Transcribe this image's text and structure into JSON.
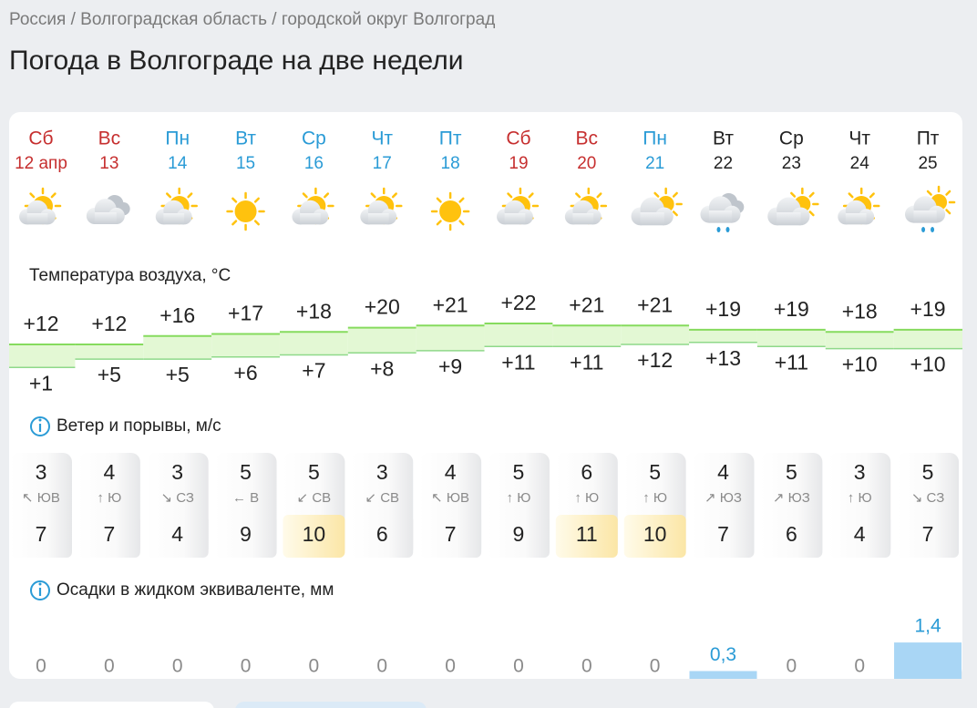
{
  "breadcrumb": "Россия / Волгоградская область / городской округ Волгоград",
  "title": "Погода в Волгограде на две недели",
  "temperature_label": "Температура воздуха, °C",
  "wind_label": "Ветер и порывы, м/с",
  "precip_label": "Осадки в жидком эквиваленте, мм",
  "days": [
    {
      "weekday": "Сб",
      "date": "12 апр",
      "color": "#c62f2f",
      "icon": "partly",
      "max": {
        "value": 12,
        "label": "+12"
      },
      "min": {
        "value": 1,
        "label": "+1"
      },
      "wind": 3,
      "dir": "↖ ЮВ",
      "gust": 7,
      "precip": {
        "value": 0,
        "label": "0"
      }
    },
    {
      "weekday": "Вс",
      "date": "13",
      "color": "#c62f2f",
      "icon": "cloudy",
      "max": {
        "value": 12,
        "label": "+12"
      },
      "min": {
        "value": 5,
        "label": "+5"
      },
      "wind": 4,
      "dir": "↑ Ю",
      "gust": 7,
      "precip": {
        "value": 0,
        "label": "0"
      }
    },
    {
      "weekday": "Пн",
      "date": "14",
      "color": "#2a9bd6",
      "icon": "partly",
      "max": {
        "value": 16,
        "label": "+16"
      },
      "min": {
        "value": 5,
        "label": "+5"
      },
      "wind": 3,
      "dir": "↘ СЗ",
      "gust": 4,
      "precip": {
        "value": 0,
        "label": "0"
      }
    },
    {
      "weekday": "Вт",
      "date": "15",
      "color": "#2a9bd6",
      "icon": "sun",
      "max": {
        "value": 17,
        "label": "+17"
      },
      "min": {
        "value": 6,
        "label": "+6"
      },
      "wind": 5,
      "dir": "← В",
      "gust": 9,
      "precip": {
        "value": 0,
        "label": "0"
      }
    },
    {
      "weekday": "Ср",
      "date": "16",
      "color": "#2a9bd6",
      "icon": "partly",
      "max": {
        "value": 18,
        "label": "+18"
      },
      "min": {
        "value": 7,
        "label": "+7"
      },
      "wind": 5,
      "dir": "↙ СВ",
      "gust": 10,
      "precip": {
        "value": 0,
        "label": "0"
      }
    },
    {
      "weekday": "Чт",
      "date": "17",
      "color": "#2a9bd6",
      "icon": "partly",
      "max": {
        "value": 20,
        "label": "+20"
      },
      "min": {
        "value": 8,
        "label": "+8"
      },
      "wind": 3,
      "dir": "↙ СВ",
      "gust": 6,
      "precip": {
        "value": 0,
        "label": "0"
      }
    },
    {
      "weekday": "Пт",
      "date": "18",
      "color": "#2a9bd6",
      "icon": "sun",
      "max": {
        "value": 21,
        "label": "+21"
      },
      "min": {
        "value": 9,
        "label": "+9"
      },
      "wind": 4,
      "dir": "↖ ЮВ",
      "gust": 7,
      "precip": {
        "value": 0,
        "label": "0"
      }
    },
    {
      "weekday": "Сб",
      "date": "19",
      "color": "#c62f2f",
      "icon": "partly",
      "max": {
        "value": 22,
        "label": "+22"
      },
      "min": {
        "value": 11,
        "label": "+11"
      },
      "wind": 5,
      "dir": "↑ Ю",
      "gust": 9,
      "precip": {
        "value": 0,
        "label": "0"
      }
    },
    {
      "weekday": "Вс",
      "date": "20",
      "color": "#c62f2f",
      "icon": "partly",
      "max": {
        "value": 21,
        "label": "+21"
      },
      "min": {
        "value": 11,
        "label": "+11"
      },
      "wind": 6,
      "dir": "↑ Ю",
      "gust": 11,
      "precip": {
        "value": 0,
        "label": "0"
      }
    },
    {
      "weekday": "Пн",
      "date": "21",
      "color": "#2a9bd6",
      "icon": "mostly",
      "max": {
        "value": 21,
        "label": "+21"
      },
      "min": {
        "value": 12,
        "label": "+12"
      },
      "wind": 5,
      "dir": "↑ Ю",
      "gust": 10,
      "precip": {
        "value": 0,
        "label": "0"
      }
    },
    {
      "weekday": "Вт",
      "date": "22",
      "color": "#222222",
      "icon": "rain",
      "max": {
        "value": 19,
        "label": "+19"
      },
      "min": {
        "value": 13,
        "label": "+13"
      },
      "wind": 4,
      "dir": "↗ ЮЗ",
      "gust": 7,
      "precip": {
        "value": 0.3,
        "label": "0,3"
      }
    },
    {
      "weekday": "Ср",
      "date": "23",
      "color": "#222222",
      "icon": "mostly",
      "max": {
        "value": 19,
        "label": "+19"
      },
      "min": {
        "value": 11,
        "label": "+11"
      },
      "wind": 5,
      "dir": "↗ ЮЗ",
      "gust": 6,
      "precip": {
        "value": 0,
        "label": "0"
      }
    },
    {
      "weekday": "Чт",
      "date": "24",
      "color": "#222222",
      "icon": "partly",
      "max": {
        "value": 18,
        "label": "+18"
      },
      "min": {
        "value": 10,
        "label": "+10"
      },
      "wind": 3,
      "dir": "↑ Ю",
      "gust": 4,
      "precip": {
        "value": 0,
        "label": "0"
      }
    },
    {
      "weekday": "Пт",
      "date": "25",
      "color": "#222222",
      "icon": "mostly-rain",
      "max": {
        "value": 19,
        "label": "+19"
      },
      "min": {
        "value": 10,
        "label": "+10"
      },
      "wind": 5,
      "dir": "↘ СЗ",
      "gust": 7,
      "precip": {
        "value": 1.4,
        "label": "1,4"
      }
    }
  ]
}
